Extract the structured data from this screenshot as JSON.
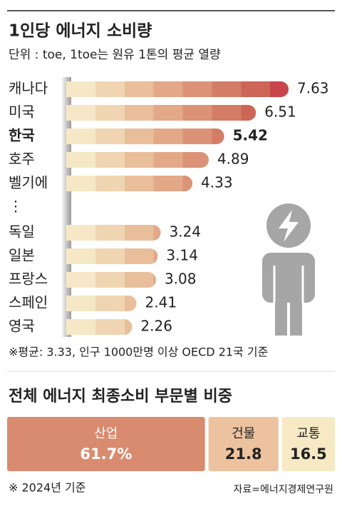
{
  "chart_data": [
    {
      "type": "hbar",
      "title": "1인당 에너지 소비량",
      "subtitle": "단위 : toe, 1toe는 원유 1톤의 평균 열량",
      "categories": [
        "캐나다",
        "미국",
        "한국",
        "호주",
        "벨기에",
        "⋮",
        "독일",
        "일본",
        "프랑스",
        "스페인",
        "영국"
      ],
      "values": [
        7.63,
        6.51,
        5.42,
        4.89,
        4.33,
        null,
        3.24,
        3.14,
        3.08,
        2.41,
        2.26
      ],
      "highlight": 2,
      "colors": [
        "#f6e8c6",
        "#f0d5b2",
        "#e9be9b",
        "#e2a888",
        "#db9277",
        "#d47d66",
        "#cd6657",
        "#c7454b"
      ],
      "note": "※평균: 3.33, 인구 1000만명 이상 OECD 21국 기준"
    },
    {
      "type": "share_bar",
      "title": "전체 에너지 최종소비 부문별 비중",
      "categories": [
        "산업",
        "건물",
        "교통"
      ],
      "values": [
        61.7,
        21.8,
        16.5
      ],
      "value_labels": [
        "61.7%",
        "21.8",
        "16.5"
      ],
      "colors": [
        "#d98b70",
        "#edc29f",
        "#f6e9c4"
      ],
      "text_colors": [
        "#ffffff",
        "#222222",
        "#222222"
      ],
      "note": "※ 2024년 기준",
      "source": "자료=에너지경제연구원"
    }
  ]
}
